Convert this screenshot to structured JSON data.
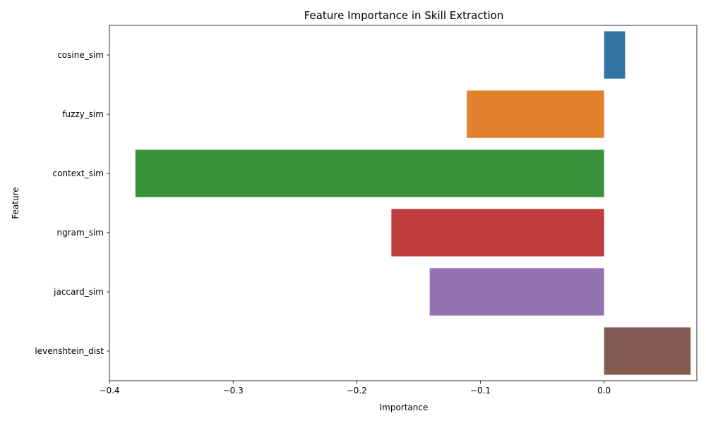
{
  "chart_data": {
    "type": "bar",
    "orientation": "horizontal",
    "title": "Feature Importance in Skill Extraction",
    "xlabel": "Importance",
    "ylabel": "Feature",
    "xlim": [
      -0.4,
      0.075
    ],
    "grid": false,
    "legend": "none",
    "categories": [
      "cosine_sim",
      "fuzzy_sim",
      "context_sim",
      "ngram_sim",
      "jaccard_sim",
      "levenshtein_dist"
    ],
    "values": [
      0.017,
      -0.111,
      -0.379,
      -0.172,
      -0.141,
      0.07
    ],
    "colors": [
      "#3274a1",
      "#e1812c",
      "#3a923a",
      "#c03d3e",
      "#9372b2",
      "#845b53"
    ],
    "xticks": [
      -0.4,
      -0.3,
      -0.2,
      -0.1,
      0.0
    ],
    "xtick_labels": [
      "−0.4",
      "−0.3",
      "−0.2",
      "−0.1",
      "0.0"
    ]
  }
}
